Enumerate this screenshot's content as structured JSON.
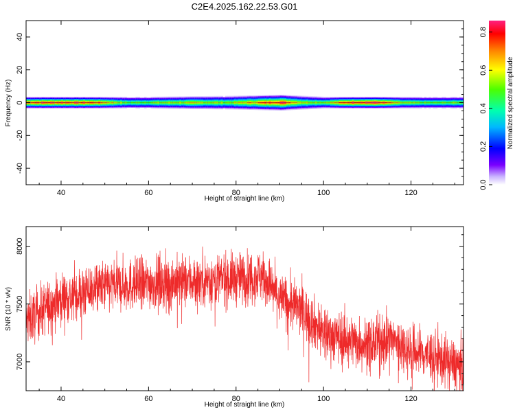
{
  "title": "C2E4.2025.162.22.53.G01",
  "chart_data": [
    {
      "type": "heatmap",
      "xlabel": "Height of straight line (km)",
      "ylabel": "Frequency (Hz)",
      "xlim": [
        32,
        132
      ],
      "ylim": [
        -50,
        50
      ],
      "xticks": [
        40,
        60,
        80,
        100,
        120
      ],
      "yticks": [
        -40,
        -20,
        0,
        20,
        40
      ],
      "colorbar": {
        "label": "Normalized spectral amplitude",
        "range": [
          0,
          0.86
        ],
        "ticks": [
          0.0,
          0.2,
          0.4,
          0.6,
          0.8
        ]
      },
      "band_amplitude": [
        {
          "x": 32,
          "peak": 0.8
        },
        {
          "x": 40,
          "peak": 0.82
        },
        {
          "x": 48,
          "peak": 0.78
        },
        {
          "x": 55,
          "peak": 0.5
        },
        {
          "x": 62,
          "peak": 0.55
        },
        {
          "x": 70,
          "peak": 0.6
        },
        {
          "x": 78,
          "peak": 0.55
        },
        {
          "x": 85,
          "peak": 0.72
        },
        {
          "x": 90,
          "peak": 0.85
        },
        {
          "x": 95,
          "peak": 0.6
        },
        {
          "x": 100,
          "peak": 0.55
        },
        {
          "x": 106,
          "peak": 0.84
        },
        {
          "x": 112,
          "peak": 0.86
        },
        {
          "x": 118,
          "peak": 0.55
        },
        {
          "x": 125,
          "peak": 0.5
        },
        {
          "x": 132,
          "peak": 0.55
        }
      ],
      "band_halfwidth_hz": [
        {
          "x": 32,
          "hw": 3
        },
        {
          "x": 60,
          "hw": 3
        },
        {
          "x": 80,
          "hw": 3.5
        },
        {
          "x": 90,
          "hw": 4
        },
        {
          "x": 100,
          "hw": 3
        },
        {
          "x": 132,
          "hw": 3
        }
      ]
    },
    {
      "type": "line",
      "xlabel": "Height of straight line (km)",
      "ylabel": "SNR (10 * v/v)",
      "xlim": [
        32,
        132
      ],
      "ylim": [
        6750,
        8170
      ],
      "xticks": [
        40,
        60,
        80,
        100,
        120
      ],
      "yticks": [
        7000,
        7500,
        8000
      ],
      "color": "#ee2a2a",
      "trend": [
        {
          "x": 32,
          "y": 7350
        },
        {
          "x": 40,
          "y": 7550
        },
        {
          "x": 50,
          "y": 7650
        },
        {
          "x": 60,
          "y": 7680
        },
        {
          "x": 70,
          "y": 7700
        },
        {
          "x": 80,
          "y": 7720
        },
        {
          "x": 86,
          "y": 7750
        },
        {
          "x": 90,
          "y": 7550
        },
        {
          "x": 95,
          "y": 7450
        },
        {
          "x": 100,
          "y": 7250
        },
        {
          "x": 105,
          "y": 7200
        },
        {
          "x": 110,
          "y": 7150
        },
        {
          "x": 115,
          "y": 7200
        },
        {
          "x": 120,
          "y": 7100
        },
        {
          "x": 125,
          "y": 7050
        },
        {
          "x": 132,
          "y": 6950
        }
      ],
      "noise_amplitude": 250
    }
  ]
}
